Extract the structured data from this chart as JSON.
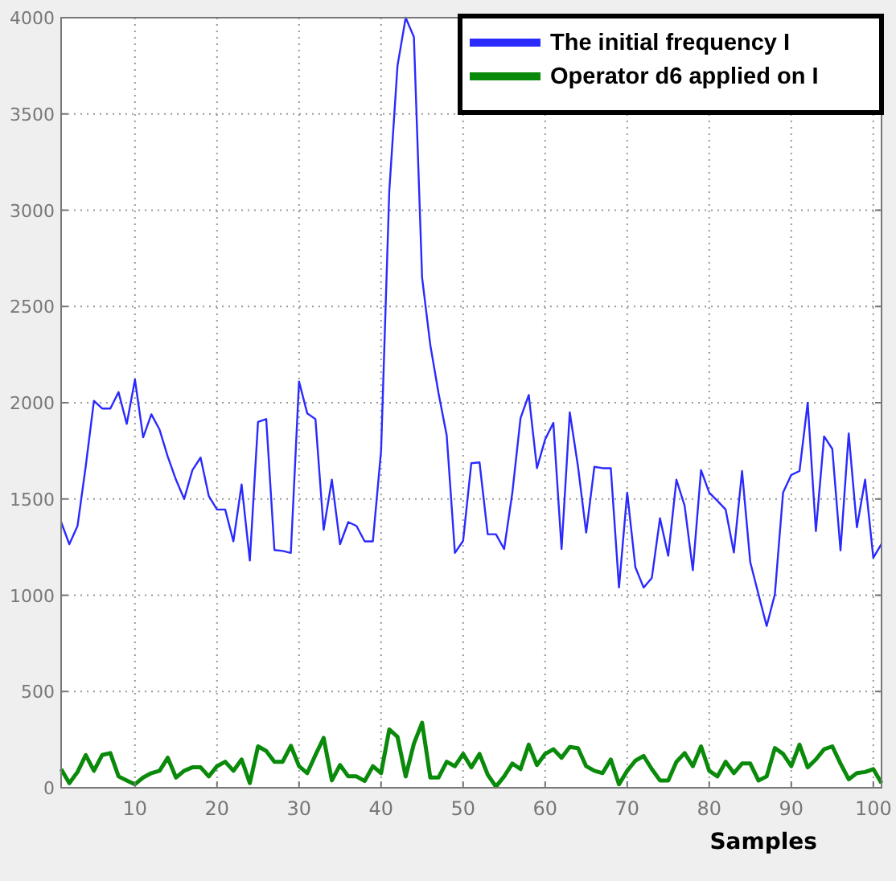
{
  "chart_data": {
    "type": "line",
    "xlabel": "Samples",
    "x": [
      1,
      2,
      3,
      4,
      5,
      6,
      7,
      8,
      9,
      10,
      11,
      12,
      13,
      14,
      15,
      16,
      17,
      18,
      19,
      20,
      21,
      22,
      23,
      24,
      25,
      26,
      27,
      28,
      29,
      30,
      31,
      32,
      33,
      34,
      35,
      36,
      37,
      38,
      39,
      40,
      41,
      42,
      43,
      44,
      45,
      46,
      47,
      48,
      49,
      50,
      51,
      52,
      53,
      54,
      55,
      56,
      57,
      58,
      59,
      60,
      61,
      62,
      63,
      64,
      65,
      66,
      67,
      68,
      69,
      70,
      71,
      72,
      73,
      74,
      75,
      76,
      77,
      78,
      79,
      80,
      81,
      82,
      83,
      84,
      85,
      86,
      87,
      88,
      89,
      90,
      91,
      92,
      93,
      94,
      95,
      96,
      97,
      98,
      99,
      100,
      101
    ],
    "series": [
      {
        "name": "The initial frequency I",
        "color": "#2a2aff",
        "values": [
          1380,
          1265,
          1360,
          1670,
          2010,
          1970,
          1970,
          2055,
          1890,
          2120,
          1820,
          1940,
          1860,
          1720,
          1600,
          1500,
          1650,
          1715,
          1515,
          1445,
          1445,
          1280,
          1575,
          1180,
          1900,
          1915,
          1235,
          1230,
          1220,
          2110,
          1945,
          1915,
          1340,
          1600,
          1265,
          1380,
          1360,
          1280,
          1280,
          1750,
          3100,
          3750,
          4000,
          3900,
          2650,
          2300,
          2050,
          1830,
          1220,
          1283,
          1686,
          1690,
          1317,
          1317,
          1240,
          1533,
          1920,
          2040,
          1660,
          1810,
          1895,
          1240,
          1950,
          1670,
          1325,
          1667,
          1660,
          1660,
          1040,
          1533,
          1145,
          1040,
          1090,
          1400,
          1205,
          1600,
          1465,
          1130,
          1650,
          1533,
          1490,
          1445,
          1222,
          1645,
          1172,
          1005,
          840,
          1005,
          1533,
          1625,
          1645,
          2000,
          1333,
          1825,
          1760,
          1233,
          1840,
          1353,
          1600,
          1195,
          1267
        ]
      },
      {
        "name": "Operator d6 applied on I",
        "color": "#0a8a0a",
        "values": [
          97,
          24,
          82,
          170,
          88,
          170,
          180,
          59,
          38,
          18,
          53,
          76,
          88,
          156,
          53,
          88,
          106,
          106,
          59,
          112,
          135,
          88,
          147,
          24,
          215,
          191,
          135,
          135,
          218,
          112,
          76,
          170,
          259,
          38,
          118,
          59,
          59,
          35,
          112,
          76,
          303,
          265,
          59,
          229,
          338,
          53,
          53,
          135,
          112,
          176,
          106,
          176,
          68,
          6,
          59,
          126,
          97,
          224,
          118,
          176,
          200,
          156,
          212,
          206,
          112,
          88,
          76,
          147,
          18,
          88,
          141,
          165,
          97,
          38,
          38,
          135,
          180,
          112,
          215,
          88,
          59,
          135,
          76,
          126,
          126,
          38,
          59,
          206,
          176,
          112,
          224,
          106,
          147,
          200,
          215,
          126,
          44,
          76,
          82,
          97,
          24
        ]
      }
    ],
    "xlim": [
      1,
      101
    ],
    "xticks": [
      10,
      20,
      30,
      40,
      50,
      60,
      70,
      80,
      90,
      100
    ],
    "ylim": [
      0,
      4000
    ],
    "yticks": [
      0,
      500,
      1000,
      1500,
      2000,
      2500,
      3000,
      3500,
      4000
    ],
    "grid": true,
    "legend": "top right",
    "marker": "none",
    "line_style": "solid"
  }
}
